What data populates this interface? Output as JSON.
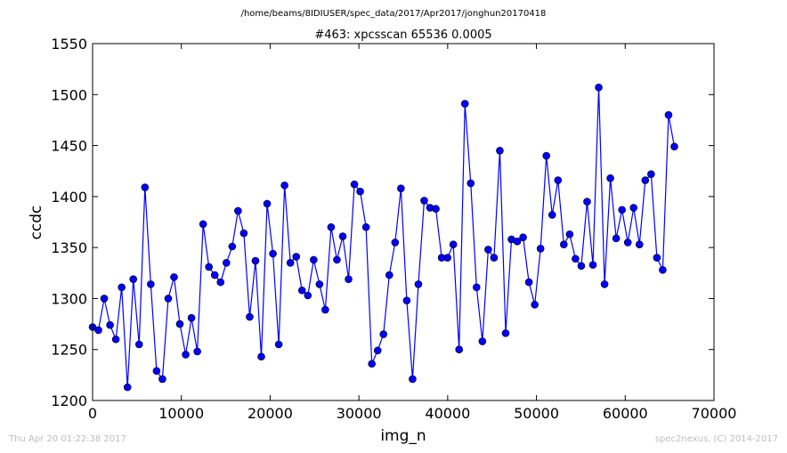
{
  "header": {
    "file_path": "/home/beams/8IDIUSER/spec_data/2017/Apr2017/jonghun20170418"
  },
  "footer": {
    "timestamp": "Thu Apr 20 01:22:38 2017",
    "credit": "spec2nexus, (C) 2014-2017"
  },
  "colors": {
    "series": "#0000ff",
    "axes": "#000000",
    "footer_text": "#bdbdbd"
  },
  "chart_data": {
    "type": "line",
    "title": "#463: xpcsscan 65536 0.0005",
    "xlabel": "img_n",
    "ylabel": "ccdc",
    "xlim": [
      0,
      70000
    ],
    "ylim": [
      1200,
      1550
    ],
    "xticks": [
      0,
      10000,
      20000,
      30000,
      40000,
      50000,
      60000,
      70000
    ],
    "yticks": [
      1200,
      1250,
      1300,
      1350,
      1400,
      1450,
      1500,
      1550
    ],
    "grid": false,
    "legend": "none",
    "marker": "circle",
    "series": [
      {
        "x": [
          0,
          655,
          1311,
          1966,
          2621,
          3277,
          3932,
          4588,
          5243,
          5898,
          6554,
          7209,
          7864,
          8520,
          9175,
          9830,
          10486,
          11141,
          11796,
          12452,
          13107,
          13763,
          14418,
          15073,
          15729,
          16384,
          17039,
          17695,
          18350,
          19005,
          19661,
          20316,
          20972,
          21627,
          22282,
          22938,
          23593,
          24248,
          24904,
          25559,
          26214,
          26870,
          27525,
          28180,
          28836,
          29491,
          30147,
          30802,
          31457,
          32113,
          32768,
          33423,
          34079,
          34734,
          35389,
          36045,
          36700,
          37356,
          38011,
          38666,
          39322,
          39977,
          40632,
          41288,
          41943,
          42598,
          43254,
          43909,
          44565,
          45220,
          45875,
          46531,
          47186,
          47841,
          48497,
          49152,
          49807,
          50463,
          51118,
          51773,
          52429,
          53084,
          53740,
          54395,
          55050,
          55706,
          56361,
          57016,
          57672,
          58327,
          58982,
          59638,
          60293,
          60949,
          61604,
          62259,
          62915,
          63570,
          64225,
          64881,
          65536
        ],
        "y": [
          1272,
          1269,
          1300,
          1274,
          1260,
          1311,
          1213,
          1319,
          1255,
          1409,
          1314,
          1229,
          1221,
          1300,
          1321,
          1275,
          1245,
          1281,
          1248,
          1373,
          1331,
          1323,
          1316,
          1335,
          1351,
          1386,
          1364,
          1282,
          1337,
          1243,
          1393,
          1344,
          1255,
          1411,
          1335,
          1341,
          1308,
          1303,
          1338,
          1314,
          1289,
          1370,
          1338,
          1361,
          1319,
          1412,
          1405,
          1370,
          1236,
          1249,
          1265,
          1323,
          1355,
          1408,
          1298,
          1221,
          1314,
          1396,
          1389,
          1388,
          1340,
          1340,
          1353,
          1250,
          1491,
          1413,
          1311,
          1258,
          1348,
          1340,
          1445,
          1266,
          1358,
          1356,
          1360,
          1316,
          1294,
          1349,
          1440,
          1382,
          1416,
          1353,
          1363,
          1339,
          1332,
          1395,
          1333,
          1507,
          1314,
          1418,
          1359,
          1387,
          1355,
          1389,
          1353,
          1416,
          1422,
          1340,
          1328,
          1480,
          1449
        ]
      }
    ]
  }
}
